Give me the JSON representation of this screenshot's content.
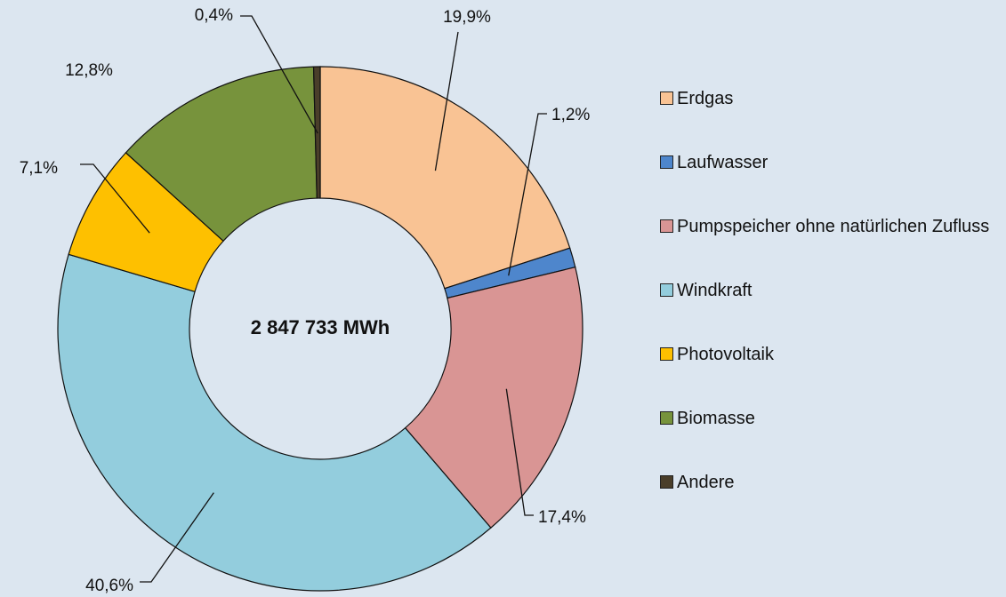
{
  "chart_data": {
    "type": "donut",
    "center_label": "2 847 733 MWh",
    "categories": [
      "Erdgas",
      "Laufwasser",
      "Pumpspeicher ohne natürlichen Zufluss",
      "Windkraft",
      "Photovoltaik",
      "Biomasse",
      "Andere"
    ],
    "values": [
      19.9,
      1.2,
      17.4,
      40.6,
      7.1,
      12.8,
      0.4
    ],
    "value_labels": [
      "19,9%",
      "1,2%",
      "17,4%",
      "40,6%",
      "7,1%",
      "12,8%",
      "0,4%"
    ],
    "colors": [
      "#f9c394",
      "#4e86cc",
      "#d99594",
      "#93cddd",
      "#fec000",
      "#77933c",
      "#4a3e2a"
    ],
    "legend": "right"
  }
}
